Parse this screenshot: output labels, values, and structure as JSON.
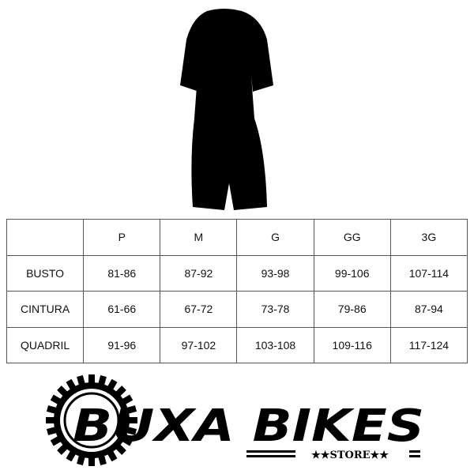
{
  "size_chart": {
    "sizes": [
      "P",
      "M",
      "G",
      "GG",
      "3G"
    ],
    "rows": [
      {
        "label": "BUSTO",
        "values": [
          "81-86",
          "87-92",
          "93-98",
          "99-106",
          "107-114"
        ]
      },
      {
        "label": "CINTURA",
        "values": [
          "61-66",
          "67-72",
          "73-78",
          "79-86",
          "87-94"
        ]
      },
      {
        "label": "QUADRIL",
        "values": [
          "91-96",
          "97-102",
          "103-108",
          "109-116",
          "117-124"
        ]
      }
    ]
  },
  "logo": {
    "brand": "BUXA BIKES",
    "sub": "★★STORE★★"
  }
}
